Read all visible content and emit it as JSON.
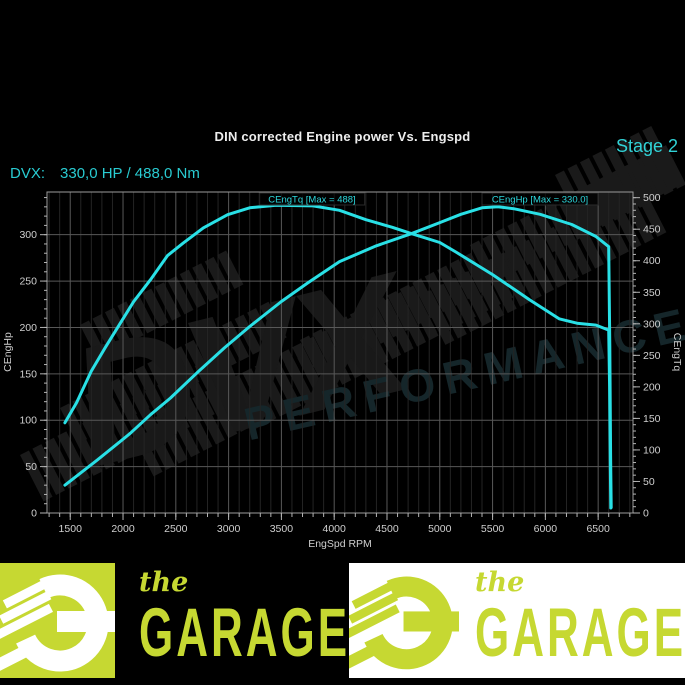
{
  "header": {
    "title": "DIN corrected Engine power Vs. Engspd",
    "stage": "Stage 2",
    "result_label": "DVX:",
    "result_value": "330,0 HP / 488,0 Nm"
  },
  "watermark": {
    "brand": "DVX",
    "sub": "PERFORMANCE"
  },
  "chart_data": {
    "type": "line",
    "title": "DIN corrected Engine power Vs. Engspd",
    "xlabel": "EngSpd RPM",
    "ylabel_left": "CEngHp",
    "ylabel_right": "CEngTq",
    "x_range": [
      1280,
      6830
    ],
    "x_ticks": [
      1500,
      2000,
      2500,
      3000,
      3500,
      4000,
      4500,
      5000,
      5500,
      6000,
      6500
    ],
    "x_minor_step": 100,
    "y_left_range": [
      0,
      346
    ],
    "y_left_ticks": [
      0,
      50,
      100,
      150,
      200,
      250,
      300
    ],
    "y_left_minor_step": 10,
    "y_right_range": [
      0,
      509
    ],
    "y_right_ticks": [
      0,
      50,
      100,
      150,
      200,
      250,
      300,
      350,
      400,
      450,
      500
    ],
    "y_right_minor_step": 10,
    "grid": true,
    "legend_position": "labels-on-curves",
    "accent_color": "#29e0e6",
    "series": [
      {
        "name": "CEngTq",
        "axis": "right",
        "unit": "Nm",
        "max": 488,
        "curve_label": "CEngTq [Max = 488]",
        "points": [
          [
            1450,
            143
          ],
          [
            1560,
            175
          ],
          [
            1700,
            225
          ],
          [
            1830,
            262
          ],
          [
            1970,
            300
          ],
          [
            2100,
            335
          ],
          [
            2260,
            370
          ],
          [
            2420,
            408
          ],
          [
            2570,
            428
          ],
          [
            2760,
            452
          ],
          [
            2990,
            473
          ],
          [
            3200,
            484
          ],
          [
            3450,
            488
          ],
          [
            3800,
            487
          ],
          [
            4050,
            480
          ],
          [
            4300,
            465
          ],
          [
            4550,
            453
          ],
          [
            4730,
            443
          ],
          [
            5000,
            429
          ],
          [
            5160,
            413
          ],
          [
            5500,
            378
          ],
          [
            5850,
            338
          ],
          [
            6130,
            308
          ],
          [
            6300,
            301
          ],
          [
            6480,
            298
          ],
          [
            6600,
            290
          ],
          [
            6608,
            200
          ],
          [
            6615,
            80
          ],
          [
            6620,
            8
          ]
        ]
      },
      {
        "name": "CEngHp",
        "axis": "left",
        "unit": "HP",
        "max": 330.0,
        "curve_label": "CEngHp [Max = 330.0]",
        "points": [
          [
            1450,
            30
          ],
          [
            1755,
            57
          ],
          [
            2070,
            86
          ],
          [
            2260,
            106
          ],
          [
            2450,
            124
          ],
          [
            2700,
            151
          ],
          [
            2960,
            178
          ],
          [
            3200,
            201
          ],
          [
            3500,
            228
          ],
          [
            3750,
            248
          ],
          [
            4050,
            271
          ],
          [
            4400,
            288
          ],
          [
            4730,
            301
          ],
          [
            5000,
            313
          ],
          [
            5200,
            322
          ],
          [
            5400,
            329
          ],
          [
            5550,
            330
          ],
          [
            5700,
            328
          ],
          [
            5950,
            322
          ],
          [
            6250,
            311
          ],
          [
            6480,
            298
          ],
          [
            6600,
            287
          ],
          [
            6610,
            180
          ],
          [
            6618,
            60
          ],
          [
            6624,
            6
          ]
        ]
      }
    ]
  },
  "banner": {
    "the": "the",
    "garage": "GARAGE",
    "lime": "#c6d832"
  }
}
